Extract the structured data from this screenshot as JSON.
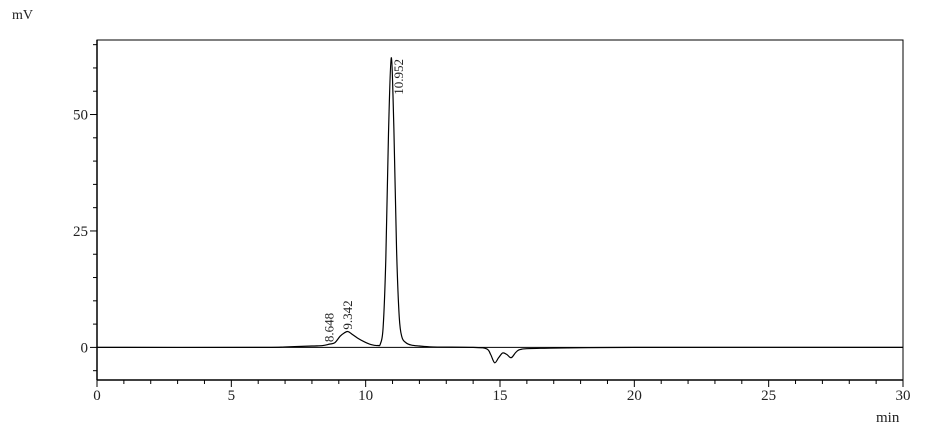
{
  "chart_data": {
    "type": "line",
    "title": "",
    "xlabel": "min",
    "ylabel": "mV",
    "xlim": [
      0,
      30
    ],
    "ylim": [
      -7,
      66
    ],
    "x_ticks": [
      0,
      5,
      10,
      15,
      20,
      25,
      30
    ],
    "x_tick_labels": [
      "0",
      "5",
      "10",
      "15",
      "20",
      "25",
      "30"
    ],
    "x_minor_step": 1,
    "y_ticks": [
      0,
      25,
      50
    ],
    "y_tick_labels": [
      "0",
      "25",
      "50"
    ],
    "y_minor_step": 5,
    "grid": false,
    "line_color": "#000000",
    "series": [
      {
        "x": [
          0,
          6,
          7,
          8,
          8.4,
          8.65,
          8.85,
          9.05,
          9.2,
          9.342,
          9.5,
          9.7,
          9.95,
          10.2,
          10.45,
          10.55,
          10.65,
          10.75,
          10.85,
          10.952,
          11.05,
          11.15,
          11.25,
          11.35,
          11.5,
          11.7,
          12,
          12.5,
          14,
          14.5,
          14.65,
          14.8,
          14.95,
          15.1,
          15.25,
          15.42,
          15.6,
          15.8,
          16.5,
          20,
          30
        ],
        "y": [
          0,
          0,
          0.1,
          0.3,
          0.4,
          0.7,
          1.0,
          2.4,
          3.1,
          3.4,
          2.8,
          2.0,
          1.2,
          0.6,
          0.4,
          0.8,
          4.3,
          19,
          46,
          62.2,
          47,
          21,
          6.5,
          2.2,
          1.0,
          0.5,
          0.3,
          0.1,
          0,
          -0.3,
          -1.5,
          -3.3,
          -2.2,
          -1.2,
          -1.5,
          -2.2,
          -1.0,
          -0.4,
          -0.2,
          0,
          0
        ]
      }
    ],
    "annotations": [
      {
        "x": 8.648,
        "y": 0.7,
        "text": "8.648"
      },
      {
        "x": 9.342,
        "y": 3.4,
        "text": "9.342"
      },
      {
        "x": 10.952,
        "y": 62.2,
        "text": "10.952"
      }
    ]
  }
}
